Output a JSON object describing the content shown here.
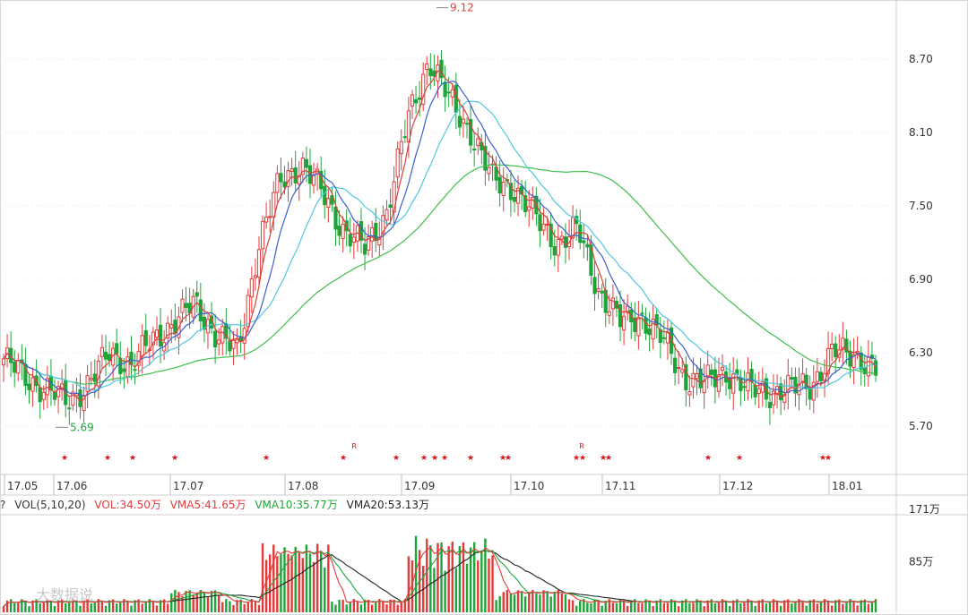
{
  "chart_data": [
    {
      "type": "candlestick",
      "title": "",
      "ylim": [
        5.4,
        9.2
      ],
      "yticks": [
        5.7,
        6.3,
        6.9,
        7.5,
        8.1,
        8.7
      ],
      "ytick_labels": [
        "5.70",
        "6.30",
        "6.90",
        "7.50",
        "8.10",
        "8.70"
      ],
      "xtick_labels": [
        "17.05",
        "17.06",
        "17.07",
        "17.08",
        "17.09",
        "17.10",
        "17.11",
        "17.12",
        "18.01"
      ],
      "annotations": [
        {
          "text": "9.12",
          "price": 9.12,
          "color": "#e33b3b"
        },
        {
          "text": "5.69",
          "price": 5.69,
          "color": "#1ea53a"
        }
      ],
      "markers": {
        "symbol": "★",
        "color": "#d11",
        "r_label": "R"
      },
      "up_color": "#e33b3b",
      "down_color": "#1ea53a",
      "ma_colors": {
        "ma5": "#d94040",
        "ma10": "#3c5fd0",
        "ma20": "#4ec8e0",
        "ma60": "#3fbf4a"
      },
      "close_sample": [
        6.25,
        6.1,
        6.0,
        5.9,
        6.05,
        6.3,
        6.2,
        6.4,
        6.55,
        6.7,
        6.45,
        6.3,
        7.2,
        7.7,
        7.85,
        7.6,
        7.3,
        7.15,
        7.45,
        8.2,
        8.7,
        8.35,
        8.1,
        7.7,
        7.65,
        7.4,
        7.2,
        7.3,
        6.8,
        6.55,
        6.6,
        6.4,
        6.1,
        6.05,
        6.15,
        6.0,
        5.98,
        6.0,
        6.05,
        6.3,
        6.3,
        6.15
      ]
    },
    {
      "type": "bar",
      "title": "VOL",
      "ylim": [
        0,
        180
      ],
      "yticks": [
        85,
        171
      ],
      "ytick_labels": [
        "85万",
        "171万"
      ],
      "legend": [
        {
          "text": "VOL(5,10,20)",
          "color": "#333333"
        },
        {
          "text": "VOL:34.50万",
          "color": "#e33b3b"
        },
        {
          "text": "VMA5:41.65万",
          "color": "#e33b3b"
        },
        {
          "text": "VMA10:35.77万",
          "color": "#1ea53a"
        },
        {
          "text": "VMA20:53.13万",
          "color": "#222222"
        }
      ],
      "watermark": "大数据说",
      "help_glyph": "?"
    }
  ]
}
